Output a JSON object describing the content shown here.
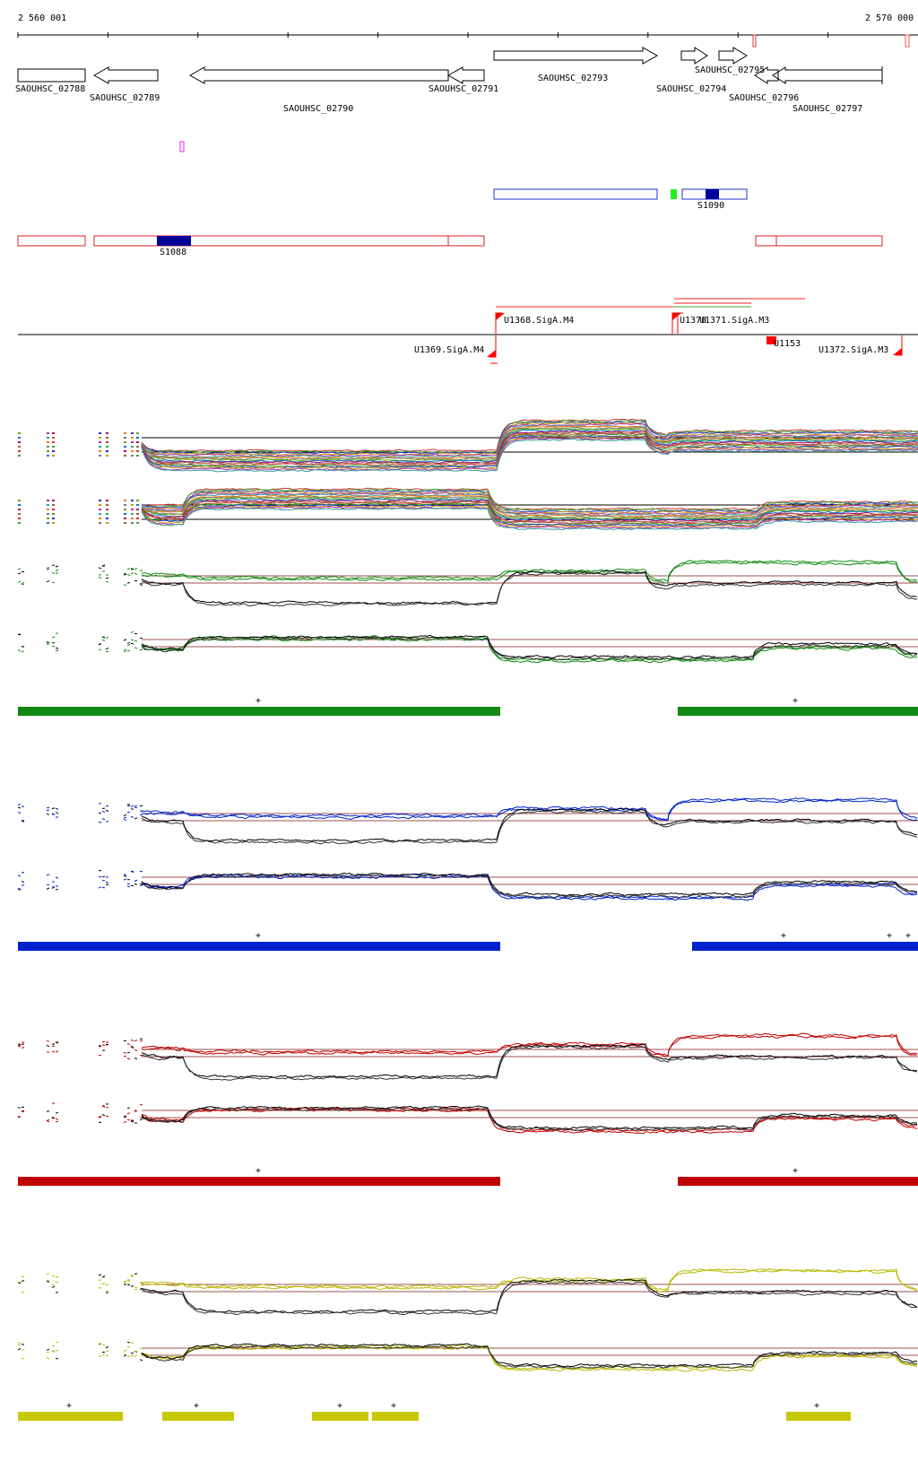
{
  "ruler": {
    "start_label": "2 560 001",
    "end_label": "2 570 000",
    "start": 2560001,
    "end": 2570000
  },
  "genes": [
    {
      "id": "SAOUHSC_02788",
      "label": "SAOUHSC_02788",
      "start": 2560001,
      "end": 2560750,
      "strand": "none",
      "row": 0
    },
    {
      "id": "SAOUHSC_02789",
      "label": "SAOUHSC_02789",
      "start": 2560840,
      "end": 2561560,
      "strand": "-",
      "row": 0
    },
    {
      "id": "SAOUHSC_02790",
      "label": "SAOUHSC_02790",
      "start": 2561920,
      "end": 2564830,
      "strand": "-",
      "row": 0
    },
    {
      "id": "SAOUHSC_02791",
      "label": "SAOUHSC_02791",
      "start": 2564830,
      "end": 2565220,
      "strand": "-",
      "row": 0
    },
    {
      "id": "SAOUHSC_02793",
      "label": "SAOUHSC_02793",
      "start": 2565350,
      "end": 2567160,
      "strand": "+",
      "row": -1
    },
    {
      "id": "SAOUHSC_02794",
      "label": "SAOUHSC_02794",
      "start": 2567310,
      "end": 2567600,
      "strand": "+",
      "row": -1
    },
    {
      "id": "SAOUHSC_02795",
      "label": "SAOUHSC_02795",
      "start": 2567720,
      "end": 2568040,
      "strand": "+",
      "row": -1
    },
    {
      "id": "SAOUHSC_02796",
      "label": "SAOUHSC_02796",
      "start": 2568040,
      "end": 2568330,
      "strand": "-",
      "row": 0
    },
    {
      "id": "SAOUHSC_02797",
      "label": "SAOUHSC_02797",
      "start": 2568290,
      "end": 2569620,
      "strand": "-",
      "row": 0
    }
  ],
  "segments": [
    {
      "id": "S1088",
      "label": "S1088"
    },
    {
      "id": "S1090",
      "label": "S1090"
    }
  ],
  "promoters": [
    {
      "id": "U1368.SigA.M4",
      "label": "U1368.SigA.M4"
    },
    {
      "id": "U1369.SigA.M4",
      "label": "U1369.SigA.M4"
    },
    {
      "id": "U1370",
      "label": "U1370"
    },
    {
      "id": "U1371.SigA.M3",
      "label": "U1371.SigA.M3"
    },
    {
      "id": "U1372.SigA.M3",
      "label": "U1372.SigA.M3"
    },
    {
      "id": "U1153",
      "label": "U1153"
    }
  ],
  "conditions": [
    {
      "name": "green",
      "color": "#118811"
    },
    {
      "name": "blue",
      "color": "#0022cc"
    },
    {
      "name": "red",
      "color": "#c00000"
    },
    {
      "name": "yellow",
      "color": "#c8c800"
    }
  ],
  "colors": {
    "gene_outline": "#000000",
    "segment_blue": "#0000aa",
    "segment_red": "#dd2222",
    "promoter_red": "#ff0000",
    "baseline_brown": "#a05050"
  }
}
